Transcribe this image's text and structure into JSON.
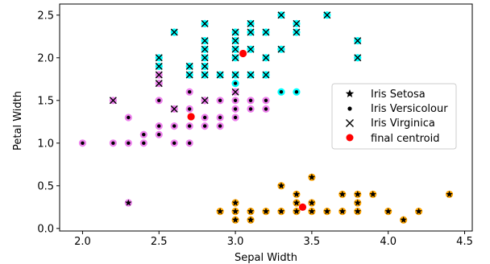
{
  "chart_data": {
    "type": "scatter",
    "title": "",
    "xlabel": "Sepal Width",
    "ylabel": "Petal Width",
    "xlim": [
      1.85,
      4.55
    ],
    "ylim": [
      -0.03,
      2.63
    ],
    "xticks": [
      "2.0",
      "2.5",
      "3.0",
      "3.5",
      "4.0",
      "4.5"
    ],
    "yticks": [
      "0.0",
      "0.5",
      "1.0",
      "1.5",
      "2.0",
      "2.5"
    ],
    "grid": false,
    "legend_position": "right",
    "legend": [
      {
        "label": "Iris Setosa",
        "marker": "star",
        "color": "#000000"
      },
      {
        "label": "Iris Versicolour",
        "marker": "dot",
        "color": "#000000"
      },
      {
        "label": "Iris Virginica",
        "marker": "x",
        "color": "#000000"
      },
      {
        "label": "final centroid",
        "marker": "circle",
        "color": "#ff0000"
      }
    ],
    "cluster_colors": {
      "orange": "#ffa500",
      "violet": "#ee82ee",
      "cyan": "#00ffff"
    },
    "series": [
      {
        "name": "Iris Setosa",
        "marker": "star",
        "points": [
          {
            "x": 2.3,
            "y": 0.3,
            "cluster": "violet"
          },
          {
            "x": 2.9,
            "y": 0.2,
            "cluster": "orange"
          },
          {
            "x": 3.0,
            "y": 0.1,
            "cluster": "orange"
          },
          {
            "x": 3.0,
            "y": 0.2,
            "cluster": "orange"
          },
          {
            "x": 3.0,
            "y": 0.3,
            "cluster": "orange"
          },
          {
            "x": 3.1,
            "y": 0.1,
            "cluster": "orange"
          },
          {
            "x": 3.1,
            "y": 0.2,
            "cluster": "orange"
          },
          {
            "x": 3.2,
            "y": 0.2,
            "cluster": "orange"
          },
          {
            "x": 3.3,
            "y": 0.2,
            "cluster": "orange"
          },
          {
            "x": 3.3,
            "y": 0.5,
            "cluster": "orange"
          },
          {
            "x": 3.4,
            "y": 0.2,
            "cluster": "orange"
          },
          {
            "x": 3.4,
            "y": 0.3,
            "cluster": "orange"
          },
          {
            "x": 3.4,
            "y": 0.4,
            "cluster": "orange"
          },
          {
            "x": 3.5,
            "y": 0.2,
            "cluster": "orange"
          },
          {
            "x": 3.5,
            "y": 0.3,
            "cluster": "orange"
          },
          {
            "x": 3.5,
            "y": 0.6,
            "cluster": "orange"
          },
          {
            "x": 3.6,
            "y": 0.2,
            "cluster": "orange"
          },
          {
            "x": 3.7,
            "y": 0.2,
            "cluster": "orange"
          },
          {
            "x": 3.7,
            "y": 0.4,
            "cluster": "orange"
          },
          {
            "x": 3.8,
            "y": 0.2,
            "cluster": "orange"
          },
          {
            "x": 3.8,
            "y": 0.3,
            "cluster": "orange"
          },
          {
            "x": 3.8,
            "y": 0.4,
            "cluster": "orange"
          },
          {
            "x": 3.9,
            "y": 0.4,
            "cluster": "orange"
          },
          {
            "x": 4.0,
            "y": 0.2,
            "cluster": "orange"
          },
          {
            "x": 4.1,
            "y": 0.1,
            "cluster": "orange"
          },
          {
            "x": 4.2,
            "y": 0.2,
            "cluster": "orange"
          },
          {
            "x": 4.4,
            "y": 0.4,
            "cluster": "orange"
          }
        ]
      },
      {
        "name": "Iris Versicolour",
        "marker": "dot",
        "points": [
          {
            "x": 2.0,
            "y": 1.0,
            "cluster": "violet"
          },
          {
            "x": 2.2,
            "y": 1.0,
            "cluster": "violet"
          },
          {
            "x": 2.3,
            "y": 1.0,
            "cluster": "violet"
          },
          {
            "x": 2.3,
            "y": 1.3,
            "cluster": "violet"
          },
          {
            "x": 2.4,
            "y": 1.0,
            "cluster": "violet"
          },
          {
            "x": 2.4,
            "y": 1.1,
            "cluster": "violet"
          },
          {
            "x": 2.5,
            "y": 1.1,
            "cluster": "violet"
          },
          {
            "x": 2.5,
            "y": 1.2,
            "cluster": "violet"
          },
          {
            "x": 2.5,
            "y": 1.5,
            "cluster": "violet"
          },
          {
            "x": 2.6,
            "y": 1.0,
            "cluster": "violet"
          },
          {
            "x": 2.6,
            "y": 1.2,
            "cluster": "violet"
          },
          {
            "x": 2.7,
            "y": 1.0,
            "cluster": "violet"
          },
          {
            "x": 2.7,
            "y": 1.2,
            "cluster": "violet"
          },
          {
            "x": 2.7,
            "y": 1.4,
            "cluster": "violet"
          },
          {
            "x": 2.7,
            "y": 1.6,
            "cluster": "violet"
          },
          {
            "x": 2.8,
            "y": 1.2,
            "cluster": "violet"
          },
          {
            "x": 2.8,
            "y": 1.3,
            "cluster": "violet"
          },
          {
            "x": 2.8,
            "y": 1.5,
            "cluster": "violet"
          },
          {
            "x": 2.9,
            "y": 1.2,
            "cluster": "violet"
          },
          {
            "x": 2.9,
            "y": 1.3,
            "cluster": "violet"
          },
          {
            "x": 2.9,
            "y": 1.5,
            "cluster": "violet"
          },
          {
            "x": 3.0,
            "y": 1.3,
            "cluster": "violet"
          },
          {
            "x": 3.0,
            "y": 1.4,
            "cluster": "violet"
          },
          {
            "x": 3.0,
            "y": 1.5,
            "cluster": "violet"
          },
          {
            "x": 3.1,
            "y": 1.4,
            "cluster": "violet"
          },
          {
            "x": 3.1,
            "y": 1.5,
            "cluster": "violet"
          },
          {
            "x": 3.2,
            "y": 1.4,
            "cluster": "violet"
          },
          {
            "x": 3.2,
            "y": 1.5,
            "cluster": "violet"
          },
          {
            "x": 3.0,
            "y": 1.7,
            "cluster": "cyan"
          },
          {
            "x": 3.2,
            "y": 1.8,
            "cluster": "cyan"
          },
          {
            "x": 3.3,
            "y": 1.6,
            "cluster": "cyan"
          },
          {
            "x": 3.4,
            "y": 1.6,
            "cluster": "cyan"
          }
        ]
      },
      {
        "name": "Iris Virginica",
        "marker": "x",
        "points": [
          {
            "x": 2.2,
            "y": 1.5,
            "cluster": "violet"
          },
          {
            "x": 2.5,
            "y": 1.7,
            "cluster": "violet"
          },
          {
            "x": 2.5,
            "y": 1.8,
            "cluster": "violet"
          },
          {
            "x": 2.6,
            "y": 1.4,
            "cluster": "violet"
          },
          {
            "x": 2.8,
            "y": 1.5,
            "cluster": "violet"
          },
          {
            "x": 3.0,
            "y": 1.6,
            "cluster": "violet"
          },
          {
            "x": 2.5,
            "y": 1.9,
            "cluster": "cyan"
          },
          {
            "x": 2.5,
            "y": 2.0,
            "cluster": "cyan"
          },
          {
            "x": 2.6,
            "y": 2.3,
            "cluster": "cyan"
          },
          {
            "x": 2.7,
            "y": 1.8,
            "cluster": "cyan"
          },
          {
            "x": 2.7,
            "y": 1.9,
            "cluster": "cyan"
          },
          {
            "x": 2.8,
            "y": 1.8,
            "cluster": "cyan"
          },
          {
            "x": 2.8,
            "y": 1.9,
            "cluster": "cyan"
          },
          {
            "x": 2.8,
            "y": 2.0,
            "cluster": "cyan"
          },
          {
            "x": 2.8,
            "y": 2.1,
            "cluster": "cyan"
          },
          {
            "x": 2.8,
            "y": 2.2,
            "cluster": "cyan"
          },
          {
            "x": 2.8,
            "y": 2.4,
            "cluster": "cyan"
          },
          {
            "x": 2.9,
            "y": 1.8,
            "cluster": "cyan"
          },
          {
            "x": 3.0,
            "y": 1.8,
            "cluster": "cyan"
          },
          {
            "x": 3.0,
            "y": 2.0,
            "cluster": "cyan"
          },
          {
            "x": 3.0,
            "y": 2.1,
            "cluster": "cyan"
          },
          {
            "x": 3.0,
            "y": 2.2,
            "cluster": "cyan"
          },
          {
            "x": 3.0,
            "y": 2.3,
            "cluster": "cyan"
          },
          {
            "x": 3.1,
            "y": 1.8,
            "cluster": "cyan"
          },
          {
            "x": 3.1,
            "y": 2.1,
            "cluster": "cyan"
          },
          {
            "x": 3.1,
            "y": 2.3,
            "cluster": "cyan"
          },
          {
            "x": 3.1,
            "y": 2.4,
            "cluster": "cyan"
          },
          {
            "x": 3.2,
            "y": 1.8,
            "cluster": "cyan"
          },
          {
            "x": 3.2,
            "y": 2.0,
            "cluster": "cyan"
          },
          {
            "x": 3.2,
            "y": 2.3,
            "cluster": "cyan"
          },
          {
            "x": 3.3,
            "y": 2.1,
            "cluster": "cyan"
          },
          {
            "x": 3.3,
            "y": 2.5,
            "cluster": "cyan"
          },
          {
            "x": 3.4,
            "y": 2.3,
            "cluster": "cyan"
          },
          {
            "x": 3.4,
            "y": 2.4,
            "cluster": "cyan"
          },
          {
            "x": 3.6,
            "y": 2.5,
            "cluster": "cyan"
          },
          {
            "x": 3.8,
            "y": 2.0,
            "cluster": "cyan"
          },
          {
            "x": 3.8,
            "y": 2.2,
            "cluster": "cyan"
          }
        ]
      },
      {
        "name": "final centroid",
        "marker": "circle",
        "points": [
          {
            "x": 2.71,
            "y": 1.31
          },
          {
            "x": 3.05,
            "y": 2.05
          },
          {
            "x": 3.44,
            "y": 0.25
          }
        ]
      }
    ]
  }
}
